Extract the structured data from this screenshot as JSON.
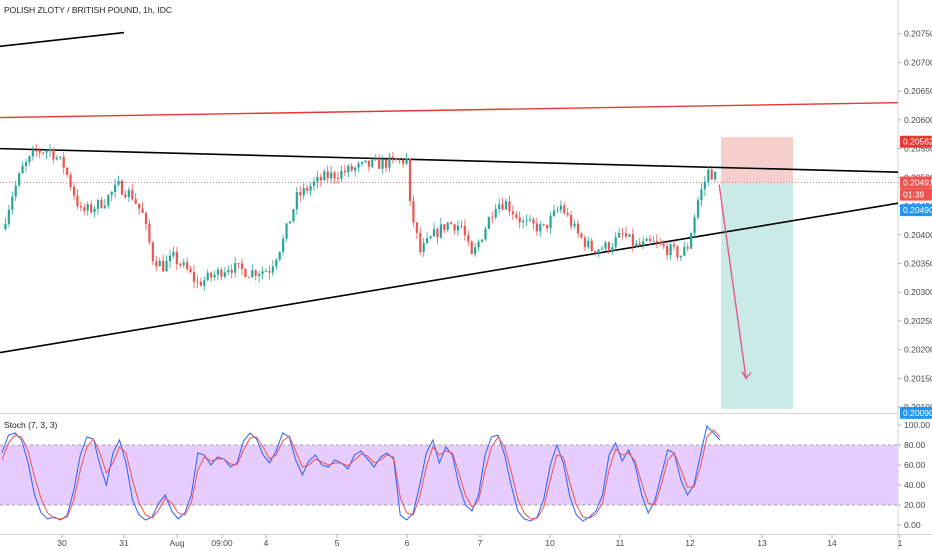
{
  "header": {
    "symbol_title": "POLISH ZLOTY / BRITISH POUND, 1h, IDC"
  },
  "chart_data": [
    {
      "type": "candlestick",
      "title": "POLISH ZLOTY / BRITISH POUND, 1h, IDC",
      "xlabel": "",
      "ylabel": "",
      "ylim": [
        0.20095,
        0.208
      ],
      "x_ticks": [
        "30",
        "31",
        "Aug",
        "09:00",
        "4",
        "5",
        "6",
        "7",
        "10",
        "11",
        "12",
        "13",
        "14",
        "1"
      ],
      "y_ticks": [
        "0.20750",
        "0.20700",
        "0.20650",
        "0.20600",
        "0.20550",
        "0.20500",
        "0.20450",
        "0.20400",
        "0.20350",
        "0.20300",
        "0.20250",
        "0.20200",
        "0.20150",
        "0.20100"
      ],
      "colors": {
        "up": "#26a69a",
        "down": "#ef5350"
      },
      "grid": false,
      "price_tags": [
        {
          "label": "0.20562",
          "value": 0.20562,
          "color": "#e53935"
        },
        {
          "label": "0.20491",
          "value": 0.20491,
          "color": "#ef5350"
        },
        {
          "label": "01:39",
          "value": 0.2047,
          "color": "#ef5350"
        },
        {
          "label": "0.20490",
          "value": 0.20443,
          "color": "#2196f3"
        },
        {
          "label": "0.20090",
          "value": 0.2009,
          "color": "#2196f3"
        }
      ],
      "short_position": {
        "entry": 0.20491,
        "stop": 0.2057,
        "target": 0.20097
      },
      "price_path": [
        [
          0,
          0.2041
        ],
        [
          3,
          0.2047
        ],
        [
          6,
          0.20515
        ],
        [
          10,
          0.20545
        ],
        [
          14,
          0.20548
        ],
        [
          18,
          0.2052
        ],
        [
          23,
          0.2044
        ],
        [
          26,
          0.20445
        ],
        [
          30,
          0.2046
        ],
        [
          34,
          0.20485
        ],
        [
          38,
          0.20468
        ],
        [
          41,
          0.20435
        ],
        [
          44,
          0.2036
        ],
        [
          47,
          0.20345
        ],
        [
          50,
          0.2036
        ],
        [
          54,
          0.20338
        ],
        [
          57,
          0.20315
        ],
        [
          62,
          0.2033
        ],
        [
          66,
          0.20345
        ],
        [
          72,
          0.20335
        ],
        [
          78,
          0.2034
        ],
        [
          82,
          0.2039
        ],
        [
          86,
          0.20465
        ],
        [
          90,
          0.20485
        ],
        [
          94,
          0.205
        ],
        [
          100,
          0.2051
        ],
        [
          106,
          0.2052
        ],
        [
          112,
          0.20525
        ],
        [
          118,
          0.2053
        ],
        [
          119,
          0.2045
        ],
        [
          122,
          0.2037
        ],
        [
          126,
          0.204
        ],
        [
          130,
          0.2042
        ],
        [
          134,
          0.20415
        ],
        [
          137,
          0.2036
        ],
        [
          140,
          0.204
        ],
        [
          144,
          0.20455
        ],
        [
          147,
          0.20455
        ],
        [
          152,
          0.2042
        ],
        [
          158,
          0.2041
        ],
        [
          163,
          0.2045
        ],
        [
          168,
          0.204
        ],
        [
          172,
          0.20375
        ],
        [
          177,
          0.2038
        ],
        [
          181,
          0.204
        ],
        [
          185,
          0.2038
        ],
        [
          190,
          0.20385
        ],
        [
          194,
          0.20375
        ],
        [
          198,
          0.20365
        ],
        [
          200,
          0.2038
        ],
        [
          203,
          0.2046
        ],
        [
          206,
          0.2051
        ],
        [
          208,
          0.20502
        ]
      ],
      "trendlines": [
        {
          "color": "#000000",
          "points": [
            [
              "start",
              0.20728
            ],
            [
              "31",
              0.20752
            ]
          ]
        },
        {
          "color": "#e53935",
          "points": [
            [
              "start",
              0.20604
            ],
            [
              "end",
              0.2063
            ]
          ]
        },
        {
          "color": "#000000",
          "points": [
            [
              "start",
              0.2055
            ],
            [
              "end",
              0.20509
            ]
          ]
        },
        {
          "color": "#000000",
          "points": [
            [
              "start",
              0.20195
            ],
            [
              "end",
              0.20455
            ]
          ]
        }
      ]
    },
    {
      "type": "line",
      "title": "Stoch (7, 3, 3)",
      "ylim": [
        -5,
        107
      ],
      "y_ticks": [
        "100.00",
        "80.00",
        "60.00",
        "40.00",
        "20.00",
        "0.00"
      ],
      "bands": {
        "upper": 80,
        "lower": 20,
        "fill": "#e6ccff"
      },
      "series": [
        {
          "color": "#2962ff",
          "values": [
            72,
            90,
            92,
            85,
            62,
            30,
            12,
            6,
            8,
            5,
            10,
            35,
            70,
            88,
            86,
            60,
            40,
            72,
            85,
            62,
            25,
            10,
            5,
            8,
            22,
            30,
            14,
            6,
            12,
            30,
            72,
            70,
            60,
            68,
            66,
            58,
            62,
            84,
            92,
            86,
            70,
            62,
            74,
            92,
            88,
            65,
            50,
            64,
            70,
            60,
            58,
            65,
            62,
            56,
            70,
            74,
            66,
            58,
            68,
            72,
            66,
            10,
            5,
            12,
            40,
            72,
            85,
            62,
            78,
            70,
            40,
            20,
            14,
            30,
            70,
            88,
            90,
            70,
            40,
            14,
            6,
            4,
            8,
            26,
            60,
            80,
            62,
            28,
            10,
            4,
            8,
            14,
            30,
            70,
            82,
            64,
            75,
            60,
            30,
            12,
            24,
            50,
            75,
            72,
            45,
            30,
            40,
            70,
            99,
            92,
            85
          ]
        },
        {
          "color": "#ef5350",
          "values": [
            65,
            82,
            90,
            88,
            74,
            48,
            26,
            12,
            7,
            6,
            8,
            25,
            55,
            78,
            86,
            72,
            52,
            62,
            78,
            72,
            45,
            22,
            10,
            7,
            15,
            27,
            22,
            12,
            10,
            22,
            55,
            68,
            64,
            66,
            66,
            61,
            60,
            75,
            87,
            88,
            78,
            66,
            70,
            84,
            89,
            74,
            58,
            60,
            66,
            63,
            60,
            62,
            62,
            59,
            65,
            71,
            69,
            62,
            65,
            70,
            68,
            28,
            12,
            10,
            28,
            58,
            78,
            70,
            74,
            72,
            52,
            30,
            18,
            24,
            54,
            78,
            88,
            78,
            54,
            26,
            12,
            6,
            7,
            18,
            45,
            70,
            68,
            42,
            20,
            8,
            7,
            11,
            22,
            55,
            76,
            70,
            72,
            64,
            42,
            22,
            20,
            40,
            65,
            72,
            56,
            38,
            38,
            58,
            88,
            95,
            88
          ]
        }
      ]
    }
  ],
  "clock_label": "01:39"
}
